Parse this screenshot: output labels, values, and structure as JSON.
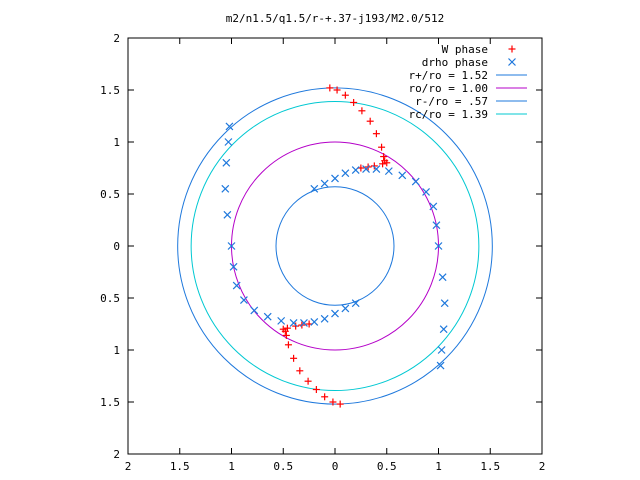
{
  "chart_data": {
    "type": "scatter",
    "title": "m2/n1.5/q1.5/r-+.37-j193/M2.0/512",
    "xlabel": "",
    "ylabel": "",
    "xlim": [
      -2,
      2
    ],
    "ylim": [
      -2,
      2
    ],
    "x_ticks": [
      "2",
      "1.5",
      "1",
      "0.5",
      "0",
      "0.5",
      "1",
      "1.5",
      "2"
    ],
    "y_ticks": [
      "2",
      "1.5",
      "1",
      "0.5",
      "0",
      "0.5",
      "1",
      "1.5",
      "2"
    ],
    "grid": false,
    "legend_position": "top-right",
    "series": [
      {
        "name": "W phase",
        "marker": "plus",
        "color": "#ff0000",
        "x": [
          -0.05,
          0.02,
          0.1,
          0.18,
          0.26,
          0.34,
          0.4,
          0.45,
          0.47,
          0.48,
          0.5,
          0.46,
          0.38,
          0.32,
          0.25,
          0.05,
          -0.02,
          -0.1,
          -0.18,
          -0.26,
          -0.34,
          -0.4,
          -0.45,
          -0.47,
          -0.48,
          -0.5,
          -0.46,
          -0.38,
          -0.32,
          -0.25
        ],
        "y": [
          1.52,
          1.5,
          1.45,
          1.38,
          1.3,
          1.2,
          1.08,
          0.95,
          0.86,
          0.82,
          0.8,
          0.79,
          0.77,
          0.76,
          0.75,
          -1.52,
          -1.5,
          -1.45,
          -1.38,
          -1.3,
          -1.2,
          -1.08,
          -0.95,
          -0.86,
          -0.82,
          -0.8,
          -0.79,
          -0.77,
          -0.76,
          -0.75
        ]
      },
      {
        "name": "drho phase",
        "marker": "x",
        "color": "#1e78dc",
        "x": [
          -1.02,
          -1.03,
          -1.05,
          -1.06,
          -1.04,
          -1.0,
          -0.98,
          -0.95,
          -0.88,
          -0.78,
          -0.65,
          -0.52,
          -0.4,
          -0.3,
          -0.2,
          -0.1,
          0.0,
          0.1,
          0.2,
          1.02,
          1.03,
          1.05,
          1.06,
          1.04,
          1.0,
          0.98,
          0.95,
          0.88,
          0.78,
          0.65,
          0.52,
          0.4,
          0.3,
          0.2,
          0.1,
          0.0,
          -0.1,
          -0.2
        ],
        "y": [
          1.15,
          1.0,
          0.8,
          0.55,
          0.3,
          0.0,
          -0.2,
          -0.38,
          -0.52,
          -0.62,
          -0.68,
          -0.72,
          -0.74,
          -0.74,
          -0.73,
          -0.7,
          -0.65,
          -0.6,
          -0.55,
          -1.15,
          -1.0,
          -0.8,
          -0.55,
          -0.3,
          0.0,
          0.2,
          0.38,
          0.52,
          0.62,
          0.68,
          0.72,
          0.74,
          0.74,
          0.73,
          0.7,
          0.65,
          0.6,
          0.55
        ]
      }
    ],
    "circles": [
      {
        "name": "r+/ro = 1.52",
        "radius": 1.52,
        "color": "#1e78dc"
      },
      {
        "name": "ro/ro = 1.00",
        "radius": 1.0,
        "color": "#b400c8"
      },
      {
        "name": "r-/ro = .57",
        "radius": 0.57,
        "color": "#1e78dc"
      },
      {
        "name": "rc/ro = 1.39",
        "radius": 1.39,
        "color": "#00c8d2"
      }
    ]
  }
}
